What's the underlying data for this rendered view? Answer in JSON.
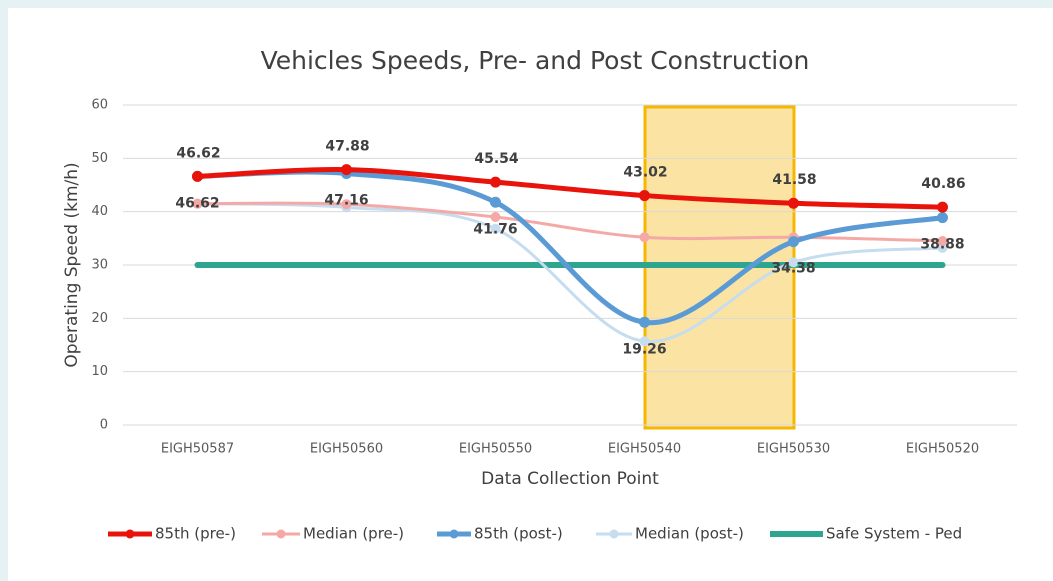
{
  "chart_data": {
    "type": "line",
    "title": "Vehicles Speeds, Pre- and Post Construction",
    "x_label": "Data Collection Point",
    "y_label": "Operating Speed (km/h)",
    "categories": [
      "EIGH50587",
      "EIGH50560",
      "EIGH50550",
      "EIGH50540",
      "EIGH50530",
      "EIGH50520"
    ],
    "ylim": [
      0,
      60
    ],
    "yticks": [
      0,
      10,
      20,
      30,
      40,
      50,
      60
    ],
    "grid": true,
    "legend": "bottom",
    "series": [
      {
        "name": "85th (pre-)",
        "color": "#e8140c",
        "values": [
          46.62,
          47.88,
          45.54,
          43.02,
          41.58,
          40.86
        ],
        "labels": "above",
        "markers": true,
        "width": 5
      },
      {
        "name": "Median (pre-)",
        "color": "#f5a9a7",
        "values": [
          41.5,
          41.4,
          39.0,
          35.2,
          35.2,
          34.5
        ],
        "markers": true,
        "width": 3
      },
      {
        "name": "85th (post-)",
        "color": "#5b9bd5",
        "values": [
          46.62,
          47.16,
          41.76,
          19.26,
          34.38,
          38.88
        ],
        "labels": "below",
        "markers": true,
        "width": 5
      },
      {
        "name": "Median (post-)",
        "color": "#c6dcef",
        "values": [
          41.5,
          40.8,
          36.8,
          15.7,
          30.5,
          33.2
        ],
        "markers": true,
        "width": 3
      },
      {
        "name": "Safe System - Ped",
        "color": "#2ea58e",
        "values": [
          30,
          30,
          30,
          30,
          30,
          30
        ],
        "markers": false,
        "width": 6
      }
    ]
  }
}
